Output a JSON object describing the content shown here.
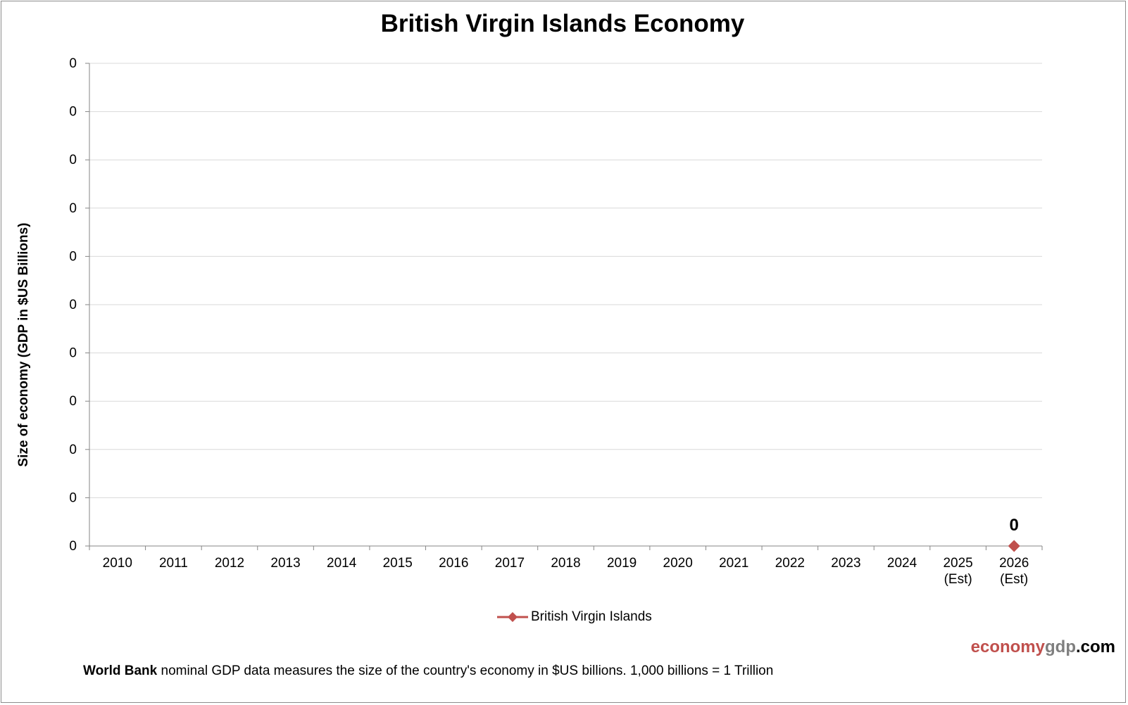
{
  "chart_data": {
    "type": "line",
    "title": "British Virgin Islands Economy",
    "ylabel": "Size of economy (GDP in $US Billions)",
    "xlabel": "",
    "categories": [
      "2010",
      "2011",
      "2012",
      "2013",
      "2014",
      "2015",
      "2016",
      "2017",
      "2018",
      "2019",
      "2020",
      "2021",
      "2022",
      "2023",
      "2024",
      "2025\n(Est)",
      "2026\n(Est)"
    ],
    "y_ticks": [
      "0",
      "0",
      "0",
      "0",
      "0",
      "0",
      "0",
      "0",
      "0",
      "0",
      "0"
    ],
    "ylim": [
      0,
      1
    ],
    "series": [
      {
        "name": "British Virgin Islands",
        "color": "#c0504d",
        "values": [
          null,
          null,
          null,
          null,
          null,
          null,
          null,
          null,
          null,
          null,
          null,
          null,
          null,
          null,
          null,
          null,
          0
        ],
        "data_labels": [
          null,
          null,
          null,
          null,
          null,
          null,
          null,
          null,
          null,
          null,
          null,
          null,
          null,
          null,
          null,
          null,
          "0"
        ]
      }
    ],
    "grid": true,
    "legend_position": "bottom"
  },
  "brand": {
    "part1": "economy",
    "part2": "gdp",
    "part3": ".com"
  },
  "footnote": {
    "bold": "World Bank",
    "text": " nominal GDP data  measures the size of the country's economy in $US billions.  1,000 billions = 1 Trillion"
  }
}
